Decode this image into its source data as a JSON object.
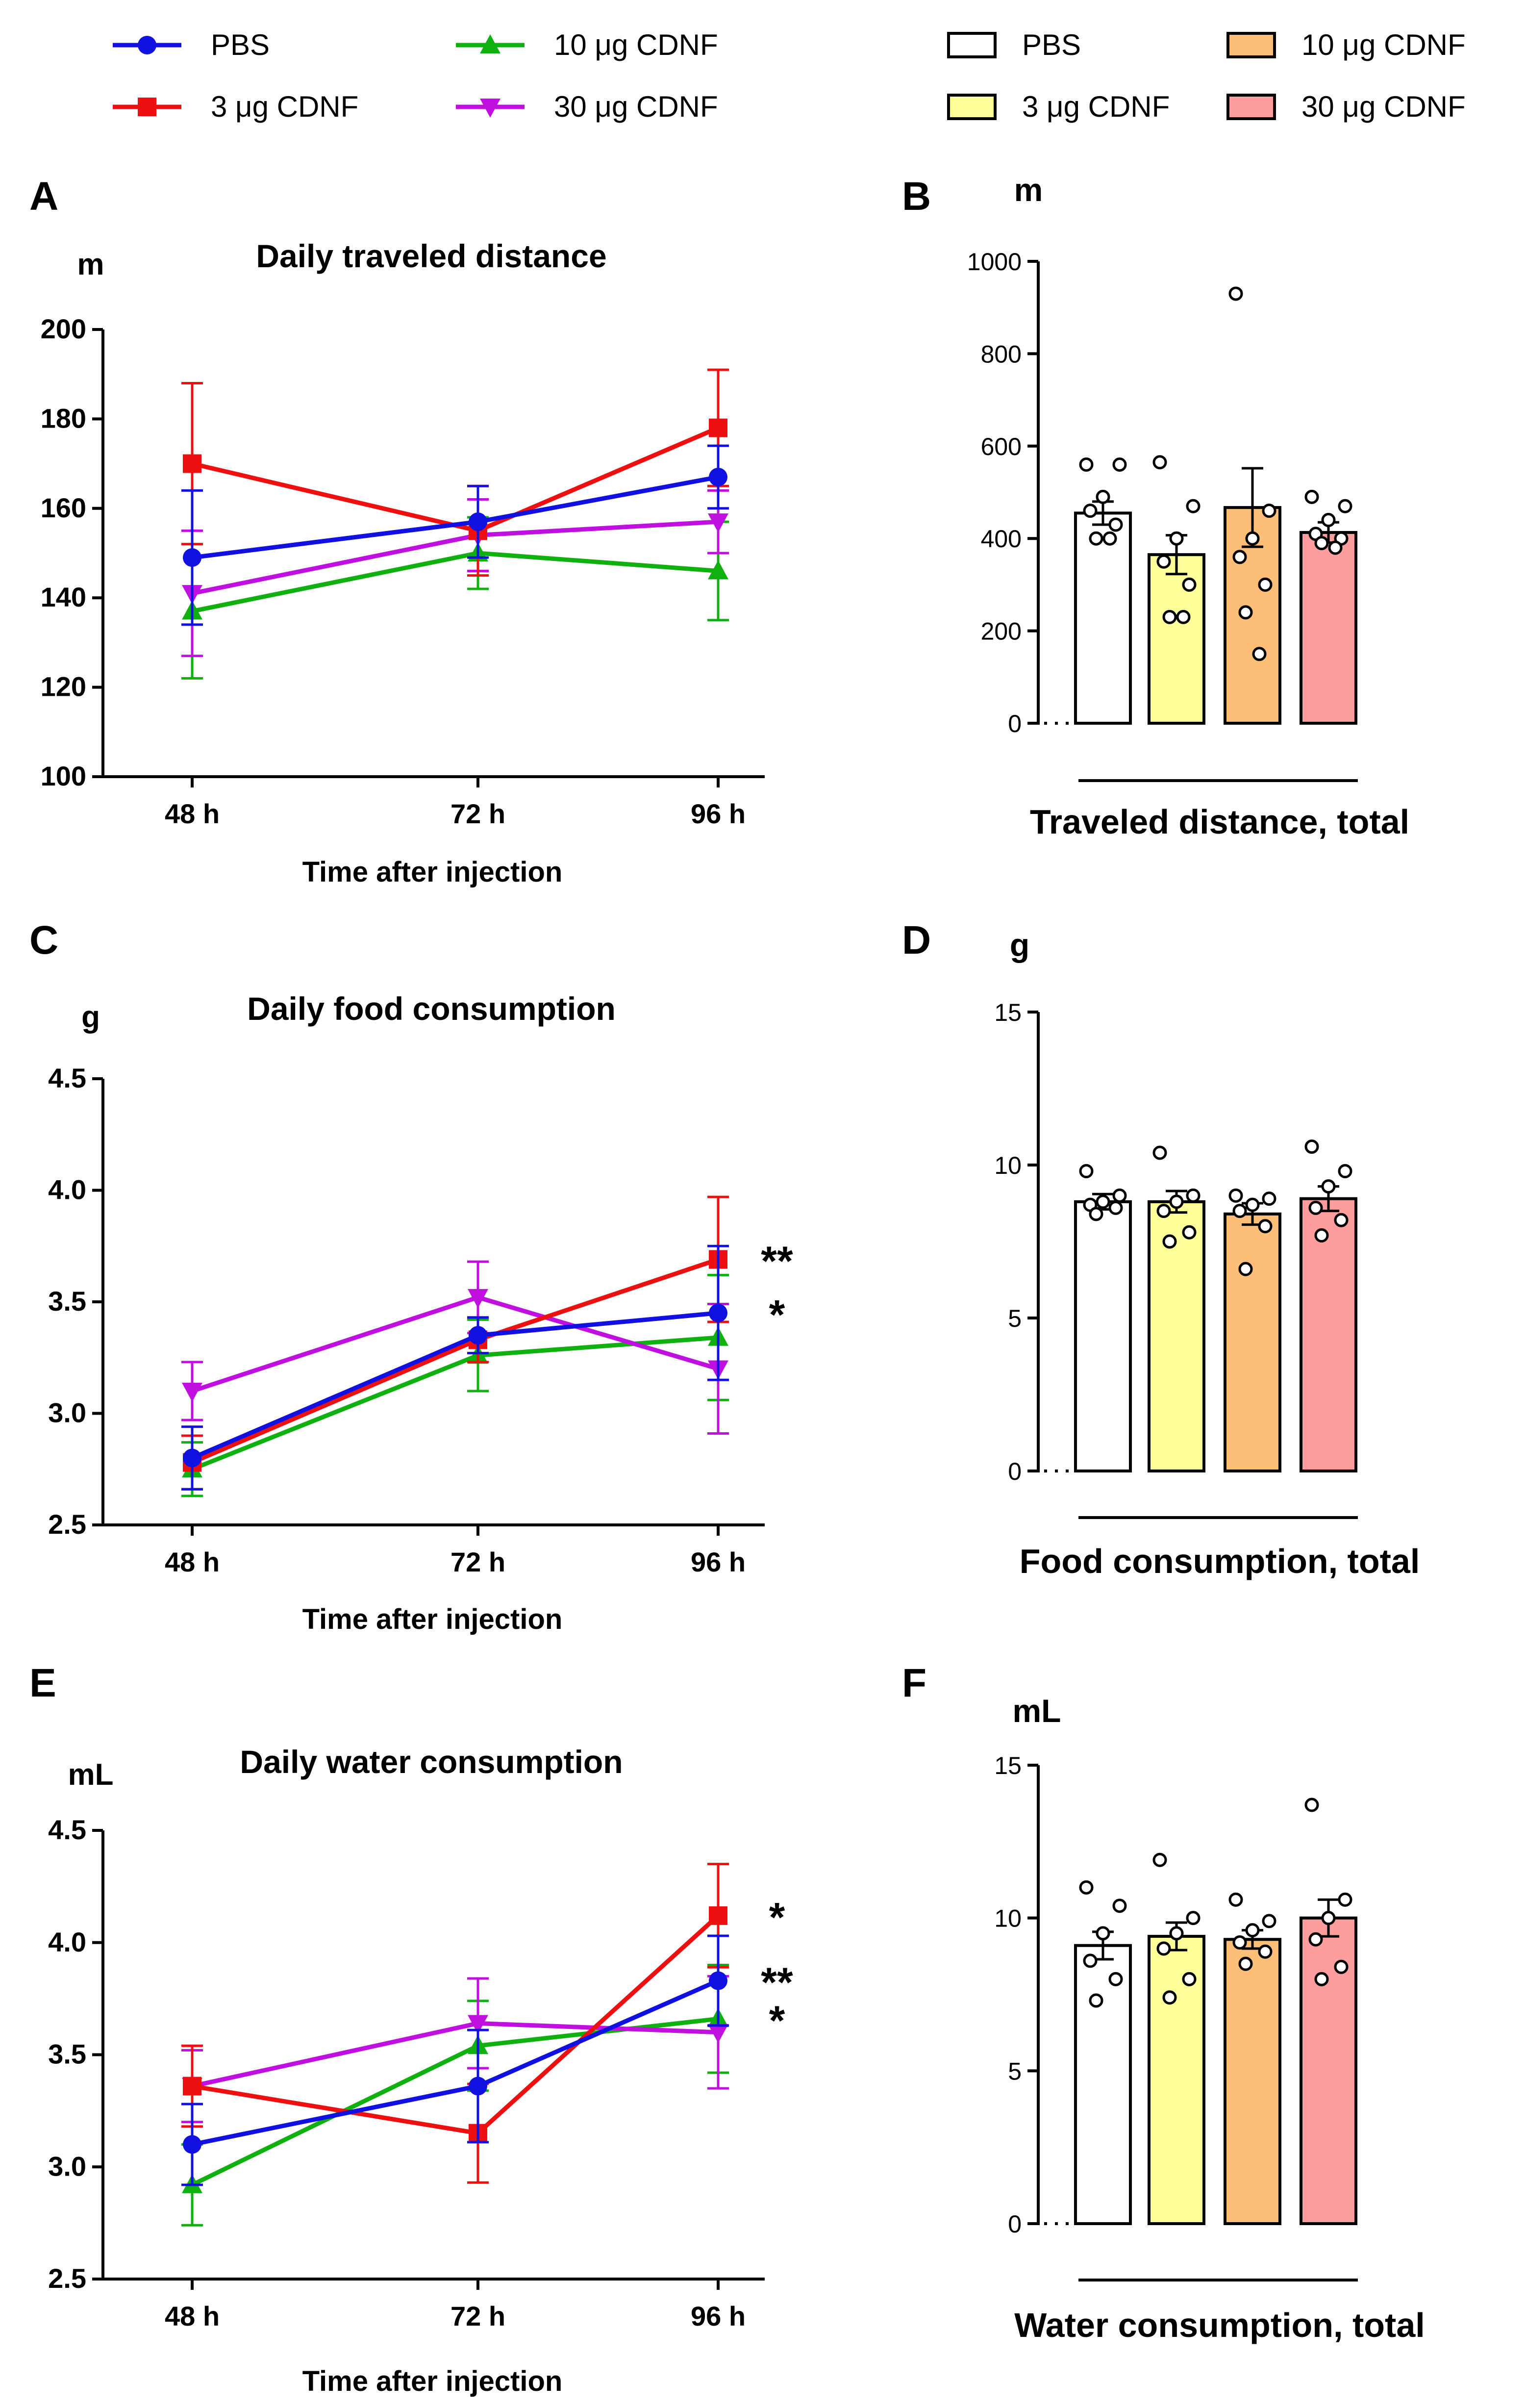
{
  "legend_left": [
    {
      "key": "pbs",
      "label": "PBS",
      "color": "#1010e0",
      "marker": "circle"
    },
    {
      "key": "c3",
      "label": "3 μg CDNF",
      "color": "#ee1010",
      "marker": "square"
    },
    {
      "key": "c10",
      "label": "10 μg CDNF",
      "color": "#10b010",
      "marker": "triangle-up"
    },
    {
      "key": "c30",
      "label": "30 μg CDNF",
      "color": "#c010e0",
      "marker": "triangle-down"
    }
  ],
  "legend_right": [
    {
      "key": "pbs",
      "label": "PBS",
      "fill": "#ffffff"
    },
    {
      "key": "c3",
      "label": "3 μg CDNF",
      "fill": "#ffff99"
    },
    {
      "key": "c10",
      "label": "10 μg CDNF",
      "fill": "#fdbf78"
    },
    {
      "key": "c30",
      "label": "30 μg CDNF",
      "fill": "#fd9d9d"
    }
  ],
  "chart_data": [
    {
      "panel": "A",
      "type": "line",
      "title": "Daily traveled distance",
      "ylabel": "m",
      "xlabel": "Time after injection",
      "categories": [
        "48 h",
        "72 h",
        "96 h"
      ],
      "ylim": [
        100,
        200
      ],
      "yticks": [
        100,
        120,
        140,
        160,
        180,
        200
      ],
      "series": [
        {
          "name": "PBS",
          "values": [
            149,
            157,
            167
          ],
          "errors": [
            15,
            8,
            7
          ]
        },
        {
          "name": "3 μg CDNF",
          "values": [
            170,
            155,
            178
          ],
          "errors": [
            18,
            10,
            13
          ]
        },
        {
          "name": "10 μg CDNF",
          "values": [
            137,
            150,
            146
          ],
          "errors": [
            15,
            8,
            11
          ]
        },
        {
          "name": "30 μg CDNF",
          "values": [
            141,
            154,
            157
          ],
          "errors": [
            14,
            8,
            7
          ]
        }
      ],
      "annotations": []
    },
    {
      "panel": "C",
      "type": "line",
      "title": "Daily food consumption",
      "ylabel": "g",
      "xlabel": "Time after injection",
      "categories": [
        "48 h",
        "72 h",
        "96 h"
      ],
      "ylim": [
        2.5,
        4.5
      ],
      "yticks": [
        2.5,
        3.0,
        3.5,
        4.0,
        4.5
      ],
      "series": [
        {
          "name": "PBS",
          "values": [
            2.8,
            3.35,
            3.45
          ],
          "errors": [
            0.14,
            0.08,
            0.3
          ]
        },
        {
          "name": "3 μg CDNF",
          "values": [
            2.78,
            3.33,
            3.69
          ],
          "errors": [
            0.12,
            0.1,
            0.28
          ]
        },
        {
          "name": "10 μg CDNF",
          "values": [
            2.75,
            3.26,
            3.34
          ],
          "errors": [
            0.12,
            0.16,
            0.28
          ]
        },
        {
          "name": "30 μg CDNF",
          "values": [
            3.1,
            3.52,
            3.2
          ],
          "errors": [
            0.13,
            0.16,
            0.29
          ]
        }
      ],
      "annotations": [
        {
          "text": "**",
          "series": "3 μg CDNF",
          "index": 2
        },
        {
          "text": "*",
          "series": "PBS",
          "index": 2
        }
      ]
    },
    {
      "panel": "E",
      "type": "line",
      "title": "Daily water consumption",
      "ylabel": "mL",
      "xlabel": "Time after injection",
      "categories": [
        "48 h",
        "72 h",
        "96 h"
      ],
      "ylim": [
        2.5,
        4.5
      ],
      "yticks": [
        2.5,
        3.0,
        3.5,
        4.0,
        4.5
      ],
      "series": [
        {
          "name": "PBS",
          "values": [
            3.1,
            3.36,
            3.83
          ],
          "errors": [
            0.18,
            0.25,
            0.2
          ]
        },
        {
          "name": "3 μg CDNF",
          "values": [
            3.36,
            3.15,
            4.12
          ],
          "errors": [
            0.18,
            0.22,
            0.23
          ]
        },
        {
          "name": "10 μg CDNF",
          "values": [
            2.92,
            3.54,
            3.66
          ],
          "errors": [
            0.18,
            0.2,
            0.24
          ]
        },
        {
          "name": "30 μg CDNF",
          "values": [
            3.36,
            3.64,
            3.6
          ],
          "errors": [
            0.16,
            0.2,
            0.25
          ]
        }
      ],
      "annotations": [
        {
          "text": "*",
          "series": "3 μg CDNF",
          "index": 2
        },
        {
          "text": "**",
          "series": "PBS",
          "index": 2
        },
        {
          "text": "*",
          "series": "10 μg CDNF",
          "index": 2
        }
      ]
    },
    {
      "panel": "B",
      "type": "bar",
      "ylabel": "m",
      "xlabel": "Traveled distance, total",
      "ylim": [
        0,
        1000
      ],
      "yticks": [
        0,
        200,
        400,
        600,
        800,
        1000
      ],
      "categories": [
        "PBS",
        "3 μg CDNF",
        "10 μg CDNF",
        "30 μg CDNF"
      ],
      "values": [
        455,
        365,
        467,
        413
      ],
      "errors": [
        25,
        42,
        85,
        22
      ],
      "points": [
        [
          560,
          560,
          490,
          460,
          430,
          400,
          400
        ],
        [
          565,
          470,
          400,
          350,
          300,
          230,
          230
        ],
        [
          930,
          460,
          400,
          360,
          300,
          240,
          150
        ],
        [
          490,
          470,
          440,
          410,
          400,
          390,
          380
        ]
      ]
    },
    {
      "panel": "D",
      "type": "bar",
      "ylabel": "g",
      "xlabel": "Food consumption, total",
      "ylim": [
        0,
        15
      ],
      "yticks": [
        0,
        5,
        10,
        15
      ],
      "categories": [
        "PBS",
        "3 μg CDNF",
        "10 μg CDNF",
        "30 μg CDNF"
      ],
      "values": [
        8.8,
        8.8,
        8.4,
        8.9
      ],
      "errors": [
        0.25,
        0.35,
        0.35,
        0.4
      ],
      "points": [
        [
          9.8,
          9.0,
          8.8,
          8.7,
          8.6,
          8.4
        ],
        [
          10.4,
          9.0,
          8.8,
          8.5,
          7.8,
          7.5
        ],
        [
          9.0,
          8.9,
          8.7,
          8.5,
          8.0,
          6.6
        ],
        [
          10.6,
          9.8,
          9.3,
          8.6,
          8.2,
          7.7
        ]
      ]
    },
    {
      "panel": "F",
      "type": "bar",
      "ylabel": "mL",
      "xlabel": "Water consumption, total",
      "ylim": [
        0,
        15
      ],
      "yticks": [
        0,
        5,
        10,
        15
      ],
      "categories": [
        "PBS",
        "3 μg CDNF",
        "10 μg CDNF",
        "30 μg CDNF"
      ],
      "values": [
        9.1,
        9.4,
        9.3,
        10.0
      ],
      "errors": [
        0.45,
        0.45,
        0.3,
        0.6
      ],
      "points": [
        [
          11.0,
          10.4,
          9.5,
          8.6,
          8.0,
          7.3
        ],
        [
          11.9,
          10.0,
          9.5,
          9.0,
          8.0,
          7.4
        ],
        [
          10.6,
          9.9,
          9.6,
          9.2,
          8.9,
          8.5
        ],
        [
          13.7,
          10.6,
          10.0,
          9.3,
          8.4,
          8.0
        ]
      ]
    }
  ]
}
